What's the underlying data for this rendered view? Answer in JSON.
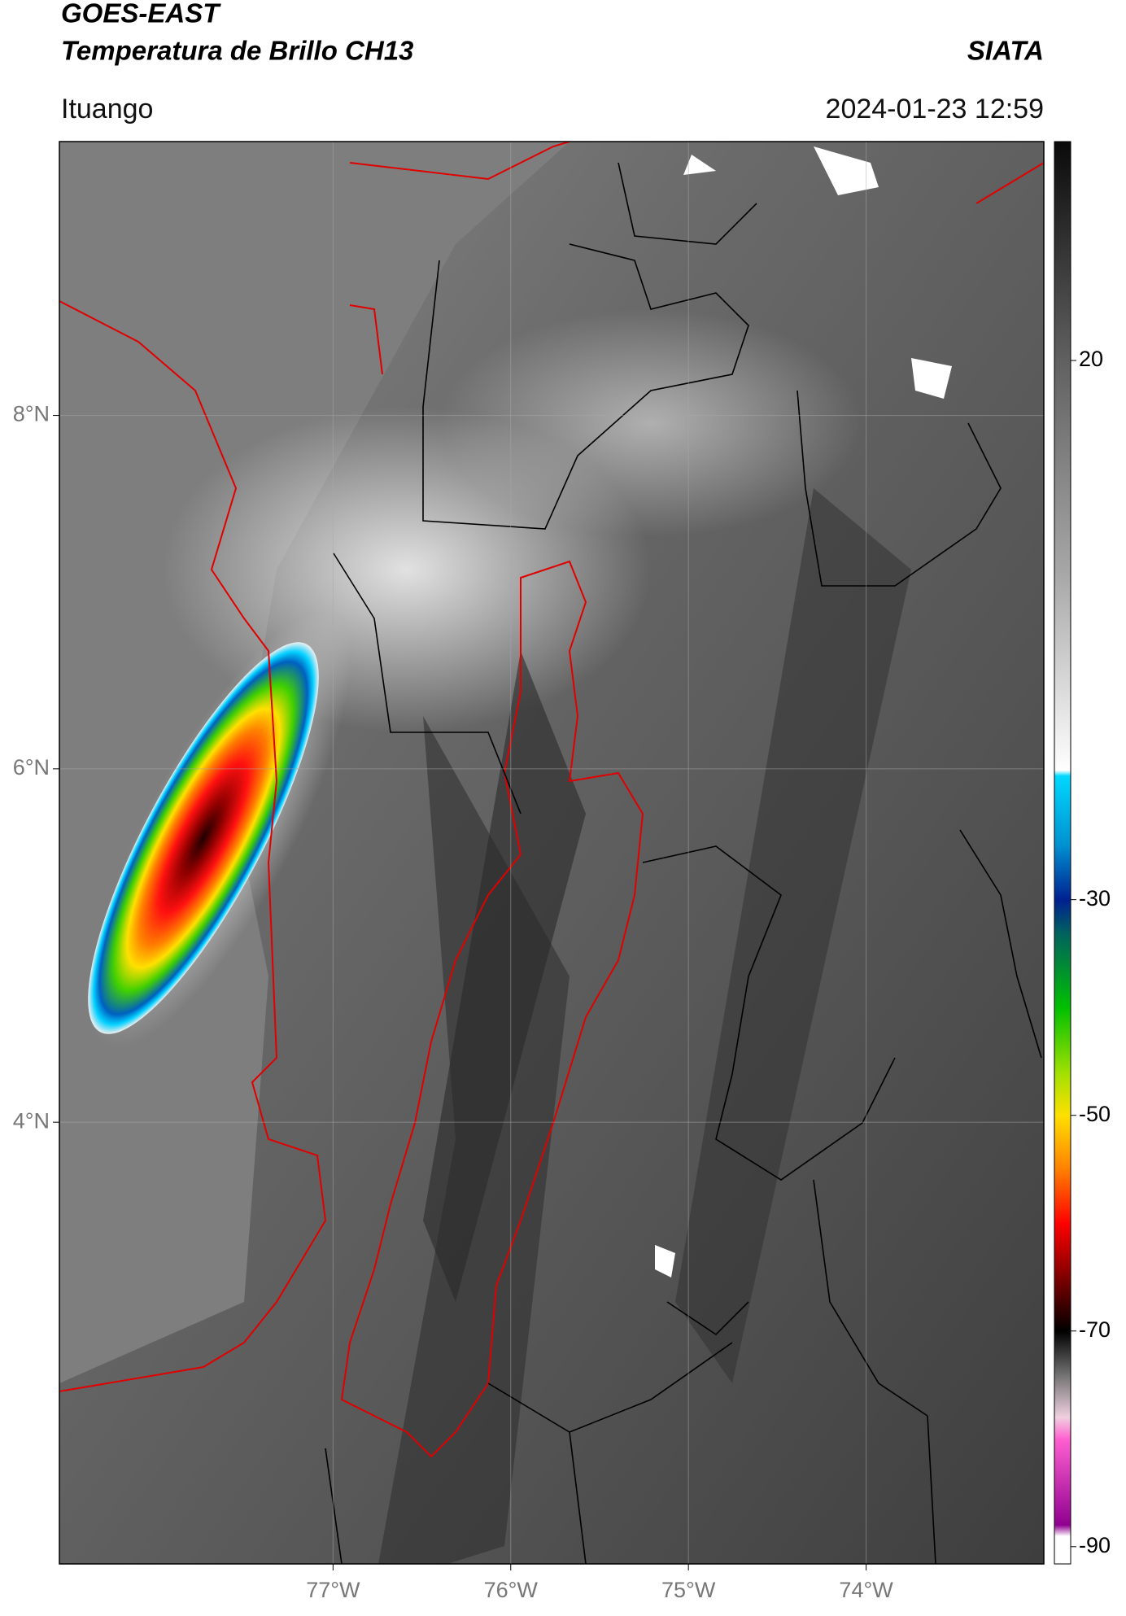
{
  "header": {
    "title": "GOES-EAST",
    "subtitle": "Temperatura de Brillo CH13",
    "brand": "SIATA",
    "place": "Ituango",
    "date": "2024-01-23 12:59"
  },
  "map": {
    "xlim": [
      -78.54,
      -73.0
    ],
    "ylim": [
      1.5,
      9.55
    ],
    "xticks": [
      {
        "value": -77,
        "label": "77°W"
      },
      {
        "value": -76,
        "label": "76°W"
      },
      {
        "value": -75,
        "label": "75°W"
      },
      {
        "value": -74,
        "label": "74°W"
      }
    ],
    "yticks": [
      {
        "value": 8,
        "label": "8°N"
      },
      {
        "value": 6,
        "label": "6°N"
      },
      {
        "value": 4,
        "label": "4°N"
      }
    ],
    "grid": true
  },
  "colorbar": {
    "lim": [
      40.3,
      -91.6
    ],
    "ticks": [
      20,
      -30,
      -50,
      -70,
      -90
    ],
    "stops": [
      {
        "value": 40.3,
        "color": "#0a0a0a"
      },
      {
        "value": 20,
        "color": "#606060"
      },
      {
        "value": 0,
        "color": "#a8a8a8"
      },
      {
        "value": -18,
        "color": "#ffffff"
      },
      {
        "value": -18.5,
        "color": "#00d8ff"
      },
      {
        "value": -25,
        "color": "#0090d0"
      },
      {
        "value": -30,
        "color": "#002090"
      },
      {
        "value": -33,
        "color": "#006060"
      },
      {
        "value": -40,
        "color": "#00c000"
      },
      {
        "value": -46,
        "color": "#a0e000"
      },
      {
        "value": -50,
        "color": "#ffe000"
      },
      {
        "value": -55,
        "color": "#ff8000"
      },
      {
        "value": -60,
        "color": "#ff0000"
      },
      {
        "value": -65,
        "color": "#800000"
      },
      {
        "value": -70,
        "color": "#000000"
      },
      {
        "value": -74,
        "color": "#707070"
      },
      {
        "value": -78,
        "color": "#f0d0e0"
      },
      {
        "value": -80,
        "color": "#ff60d0"
      },
      {
        "value": -88,
        "color": "#900090"
      },
      {
        "value": -89,
        "color": "#ffffff"
      }
    ]
  }
}
